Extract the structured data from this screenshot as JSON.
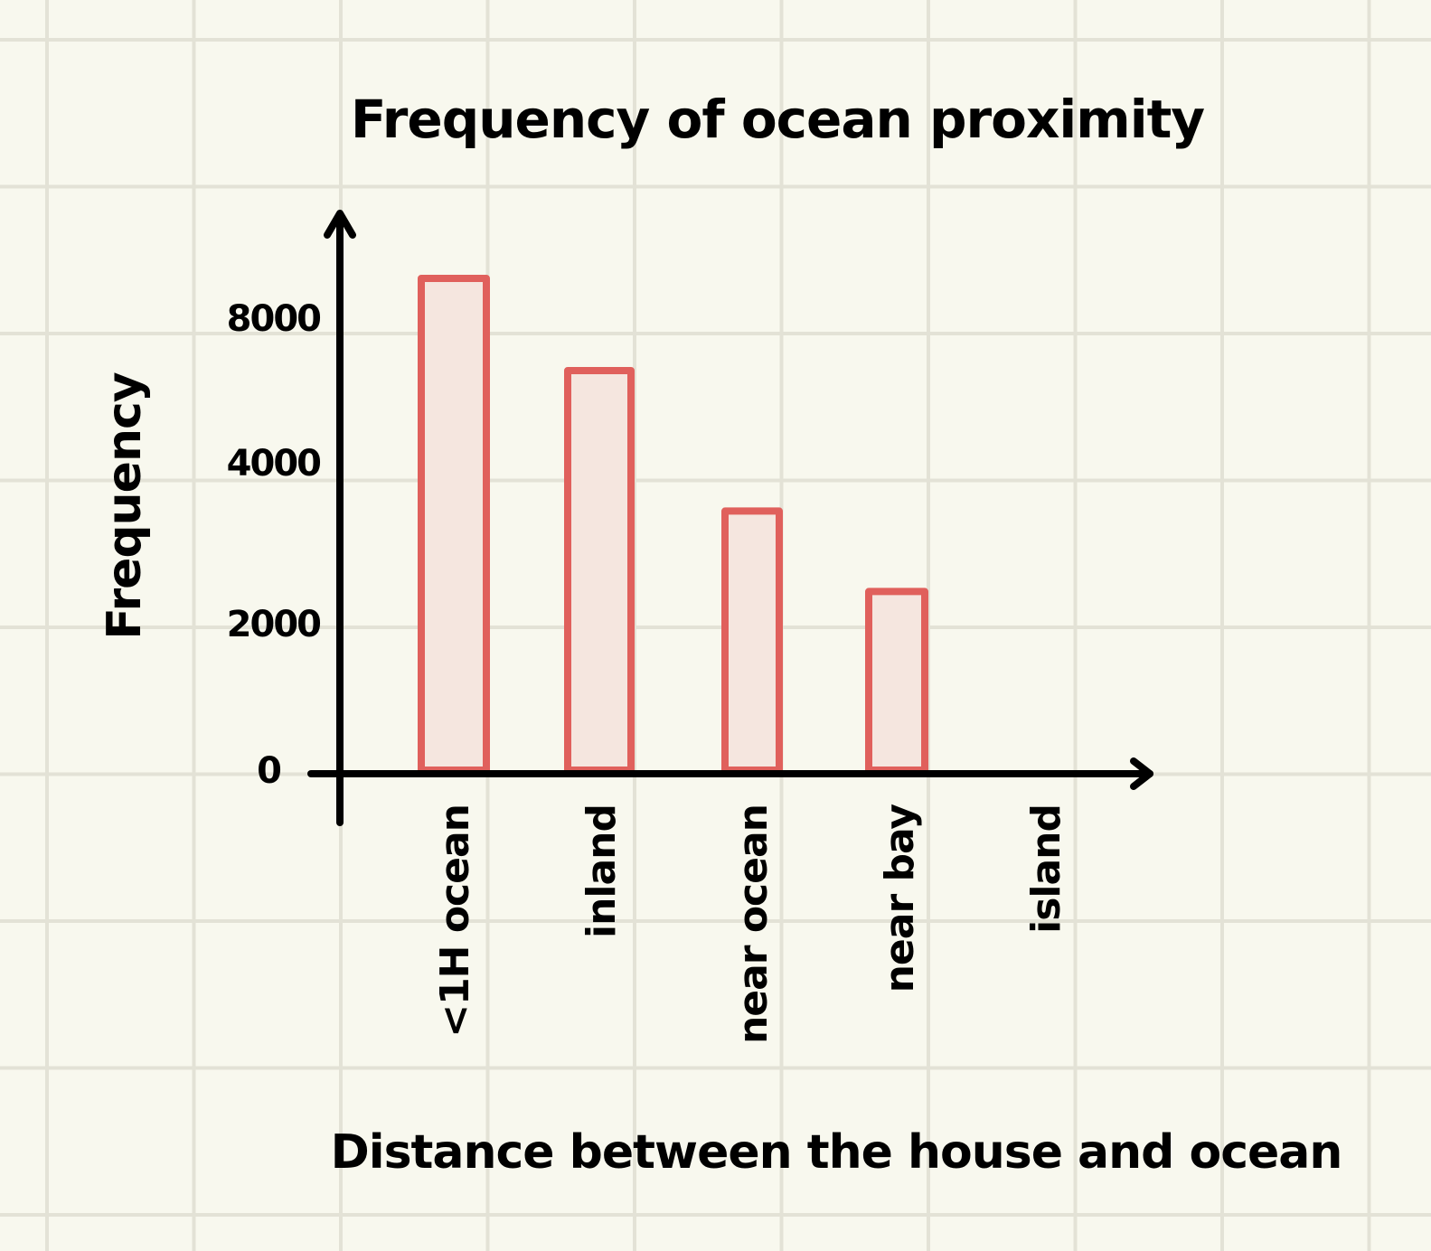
{
  "chart_data": {
    "type": "bar",
    "title": "Frequency of ocean proximity",
    "xlabel": "Distance between the house and ocean",
    "ylabel": "Frequency",
    "categories": [
      "<1H ocean",
      "inland",
      "near ocean",
      "near bay",
      "island"
    ],
    "values": [
      9100,
      6550,
      3400,
      2400,
      5
    ],
    "y_ticks": [
      {
        "value": 0,
        "label": "0"
      },
      {
        "value": 2000,
        "label": "2000"
      },
      {
        "value": 4000,
        "label": "4000"
      },
      {
        "value": 8000,
        "label": "8000"
      }
    ],
    "ylim": [
      0,
      10000
    ],
    "grid": true,
    "bar_color": "#e0605c",
    "bar_fill": "#f5e6df",
    "background": "#f8f8ee"
  }
}
